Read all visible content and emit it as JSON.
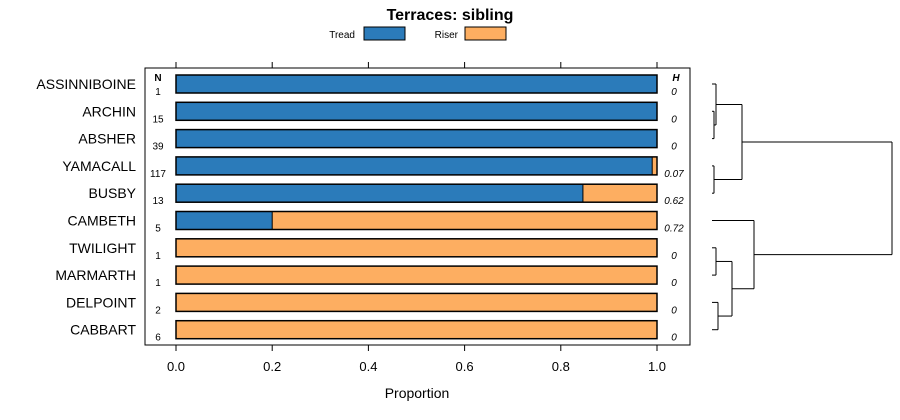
{
  "chart_data": {
    "type": "bar",
    "stacked": true,
    "orientation": "horizontal",
    "title": "Terraces: sibling",
    "xlabel": "Proportion",
    "xlim": [
      0,
      1
    ],
    "xticks": [
      0.0,
      0.2,
      0.4,
      0.6,
      0.8,
      1.0
    ],
    "xtick_labels": [
      "0.0",
      "0.2",
      "0.4",
      "0.6",
      "0.8",
      "1.0"
    ],
    "legend_position": "top-center",
    "n_header": "N",
    "h_header": "H",
    "series": [
      {
        "name": "Tread",
        "color": "#2b7bba"
      },
      {
        "name": "Riser",
        "color": "#fdae61"
      }
    ],
    "categories": [
      {
        "name": "ASSINNIBOINE",
        "n": "1",
        "h": "0",
        "tread": 1.0
      },
      {
        "name": "ARCHIN",
        "n": "15",
        "h": "0",
        "tread": 1.0
      },
      {
        "name": "ABSHER",
        "n": "39",
        "h": "0",
        "tread": 1.0
      },
      {
        "name": "YAMACALL",
        "n": "117",
        "h": "0.07",
        "tread": 0.99
      },
      {
        "name": "BUSBY",
        "n": "13",
        "h": "0.62",
        "tread": 0.846
      },
      {
        "name": "CAMBETH",
        "n": "5",
        "h": "0.72",
        "tread": 0.2
      },
      {
        "name": "TWILIGHT",
        "n": "1",
        "h": "0",
        "tread": 0.0
      },
      {
        "name": "MARMARTH",
        "n": "1",
        "h": "0",
        "tread": 0.0
      },
      {
        "name": "DELPOINT",
        "n": "2",
        "h": "0",
        "tread": 0.0
      },
      {
        "name": "CABBART",
        "n": "6",
        "h": "0",
        "tread": 0.0
      }
    ],
    "dendrogram": {
      "children": [
        {
          "height": 0.15,
          "children": [
            {
              "height": 0.02,
              "children": [
                {
                  "leaf": 0
                },
                {
                  "height": 0.01,
                  "children": [
                    {
                      "leaf": 1
                    },
                    {
                      "leaf": 2
                    }
                  ]
                }
              ]
            },
            {
              "height": 0.01,
              "children": [
                {
                  "leaf": 3
                },
                {
                  "leaf": 4
                }
              ]
            }
          ]
        },
        {
          "height": 0.21,
          "children": [
            {
              "leaf": 5
            },
            {
              "height": 0.1,
              "children": [
                {
                  "height": 0.02,
                  "children": [
                    {
                      "leaf": 6
                    },
                    {
                      "leaf": 7
                    }
                  ]
                },
                {
                  "height": 0.03,
                  "children": [
                    {
                      "leaf": 8
                    },
                    {
                      "leaf": 9
                    }
                  ]
                }
              ]
            }
          ]
        }
      ],
      "height": 0.9
    }
  }
}
